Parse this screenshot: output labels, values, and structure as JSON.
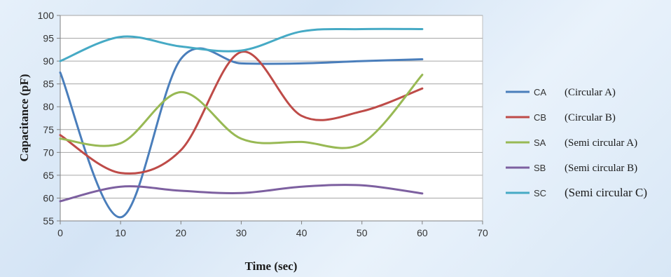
{
  "chart_data": {
    "type": "line",
    "xlabel": "Time (sec)",
    "ylabel": "Capacitance  (pF)",
    "xlim": [
      0,
      70
    ],
    "ylim": [
      55,
      100
    ],
    "xticks": [
      "0",
      "10",
      "20",
      "30",
      "40",
      "50",
      "60",
      "70"
    ],
    "yticks": [
      "55",
      "60",
      "65",
      "70",
      "75",
      "80",
      "85",
      "90",
      "95",
      "100"
    ],
    "grid": "horizontal",
    "legend_position": "right",
    "series": [
      {
        "name": "CA",
        "description": "(Circular A)",
        "color": "#4a7ebb",
        "x": [
          0,
          10,
          20,
          30,
          40,
          50,
          60
        ],
        "y": [
          87.5,
          55.8,
          90.5,
          89.5,
          89.5,
          90,
          90.4
        ]
      },
      {
        "name": "CB",
        "description": "(Circular B)",
        "color": "#be4b48",
        "x": [
          0,
          10,
          20,
          30,
          40,
          50,
          60
        ],
        "y": [
          73.8,
          65.5,
          70.5,
          92,
          78,
          79,
          84
        ]
      },
      {
        "name": "SA",
        "description": "(Semi circular A)",
        "color": "#98b954",
        "x": [
          0,
          10,
          20,
          30,
          40,
          50,
          60
        ],
        "y": [
          73,
          72,
          83.2,
          73,
          72.3,
          72,
          87
        ]
      },
      {
        "name": "SB",
        "description": "(Semi circular B)",
        "color": "#7d60a0",
        "x": [
          0,
          10,
          20,
          30,
          40,
          50,
          60
        ],
        "y": [
          59.3,
          62.5,
          61.6,
          61.1,
          62.5,
          62.8,
          61
        ]
      },
      {
        "name": "SC",
        "description": "(Semi circular C)",
        "color": "#46aac5",
        "x": [
          0,
          10,
          20,
          30,
          40,
          50,
          60
        ],
        "y": [
          90,
          95.3,
          93.2,
          92.3,
          96.5,
          97,
          97
        ]
      }
    ]
  }
}
